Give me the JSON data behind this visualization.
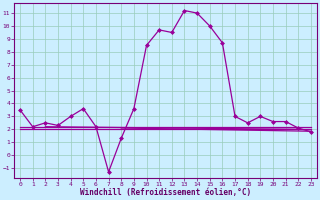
{
  "xlabel": "Windchill (Refroidissement éolien,°C)",
  "bg_color": "#cceeff",
  "line_color": "#990099",
  "grid_color": "#99ccbb",
  "x_values": [
    0,
    1,
    2,
    3,
    4,
    5,
    6,
    7,
    8,
    9,
    10,
    11,
    12,
    13,
    14,
    15,
    16,
    17,
    18,
    19,
    20,
    21,
    22,
    23
  ],
  "y_main": [
    3.5,
    2.2,
    2.5,
    2.3,
    3.0,
    3.6,
    2.2,
    -1.3,
    1.3,
    3.6,
    8.5,
    9.7,
    9.5,
    11.2,
    11.0,
    10.0,
    8.7,
    3.0,
    2.5,
    3.0,
    2.6,
    2.6,
    2.1,
    1.8
  ],
  "y_line1": [
    2.2,
    2.2,
    2.2,
    2.2,
    2.2,
    2.2,
    2.2,
    2.2,
    2.2,
    2.2,
    2.2,
    2.2,
    2.2,
    2.2,
    2.2,
    2.2,
    2.2,
    2.2,
    2.2,
    2.2,
    2.2,
    2.2,
    2.2,
    2.2
  ],
  "y_line2": [
    2.0,
    2.0,
    2.0,
    2.0,
    2.0,
    2.0,
    2.0,
    2.0,
    2.0,
    2.0,
    2.0,
    2.0,
    2.0,
    2.0,
    2.0,
    2.0,
    2.0,
    2.0,
    2.0,
    2.0,
    2.0,
    2.0,
    2.0,
    2.0
  ],
  "y_line3_x": [
    8,
    23
  ],
  "y_line3_y": [
    2.0,
    2.0
  ],
  "y_line4_x": [
    2,
    22
  ],
  "y_line4_y": [
    2.2,
    1.9
  ],
  "ylim": [
    -1.8,
    11.8
  ],
  "yticks": [
    -1,
    0,
    1,
    2,
    3,
    4,
    5,
    6,
    7,
    8,
    9,
    10,
    11
  ],
  "xticks": [
    0,
    1,
    2,
    3,
    4,
    5,
    6,
    7,
    8,
    9,
    10,
    11,
    12,
    13,
    14,
    15,
    16,
    17,
    18,
    19,
    20,
    21,
    22,
    23
  ]
}
